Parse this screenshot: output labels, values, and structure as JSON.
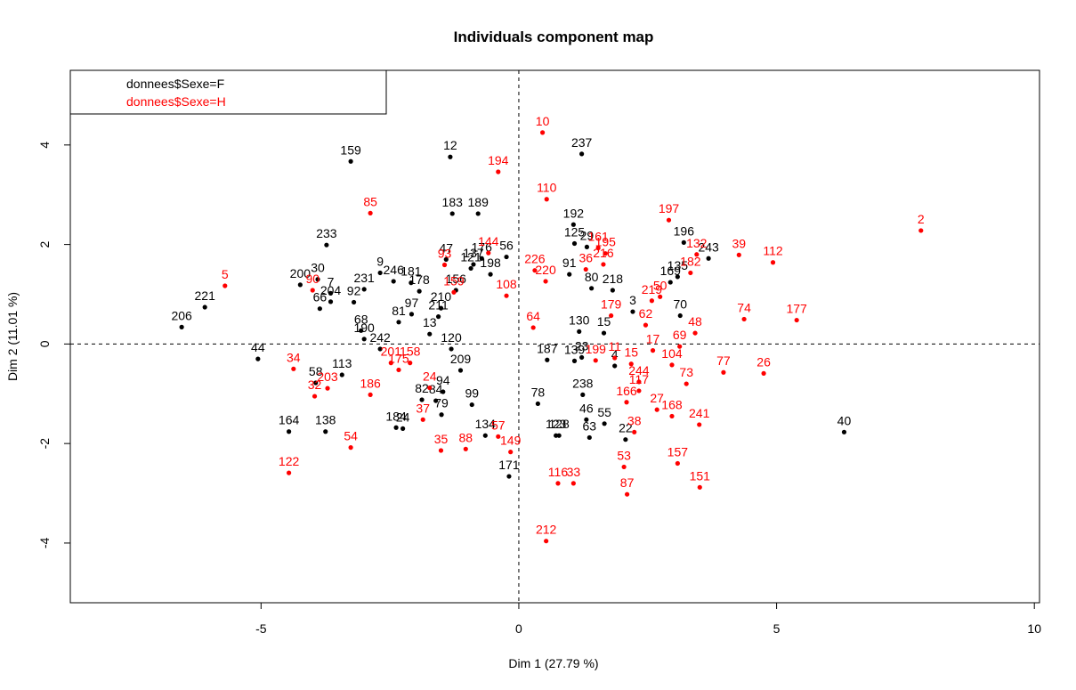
{
  "chart_data": {
    "type": "scatter",
    "title": "Individuals component map",
    "xlabel": "Dim 1 (27.79 %)",
    "ylabel": "Dim 2 (11.01 %)",
    "xlim": [
      -8.7,
      10.1
    ],
    "ylim": [
      -5.2,
      5.5
    ],
    "xticks": [
      -5,
      0,
      5,
      10
    ],
    "yticks": [
      -4,
      -2,
      0,
      2,
      4
    ],
    "xtick_labels": [
      "-5",
      "0",
      "5",
      "10"
    ],
    "ytick_labels": [
      "-4",
      "-2",
      "0",
      "2",
      "4"
    ],
    "reference_lines": {
      "x": 0,
      "y": 0,
      "style": "dashed"
    },
    "legend": {
      "placement": "top-left",
      "entries": [
        {
          "label": "donnees$Sexe=F",
          "color": "#000000"
        },
        {
          "label": "donnees$Sexe=H",
          "color": "#ff0000"
        }
      ]
    },
    "series": [
      {
        "name": "donnees$Sexe=F",
        "color": "#000000",
        "points": [
          {
            "label": "159",
            "x": -3.26,
            "y": 3.67
          },
          {
            "label": "12",
            "x": -1.33,
            "y": 3.76
          },
          {
            "label": "237",
            "x": 1.22,
            "y": 3.82
          },
          {
            "label": "189",
            "x": -0.79,
            "y": 2.62
          },
          {
            "label": "183",
            "x": -1.29,
            "y": 2.62
          },
          {
            "label": "192",
            "x": 1.06,
            "y": 2.4
          },
          {
            "label": "233",
            "x": -3.73,
            "y": 1.99
          },
          {
            "label": "196",
            "x": 3.2,
            "y": 2.04
          },
          {
            "label": "243",
            "x": 3.68,
            "y": 1.72
          },
          {
            "label": "47",
            "x": -1.41,
            "y": 1.7
          },
          {
            "label": "176",
            "x": -0.72,
            "y": 1.72
          },
          {
            "label": "56",
            "x": -0.24,
            "y": 1.75
          },
          {
            "label": "137",
            "x": -0.88,
            "y": 1.6
          },
          {
            "label": "121",
            "x": -0.93,
            "y": 1.52
          },
          {
            "label": "198",
            "x": -0.55,
            "y": 1.4
          },
          {
            "label": "9",
            "x": -2.69,
            "y": 1.43
          },
          {
            "label": "30",
            "x": -3.9,
            "y": 1.3
          },
          {
            "label": "246",
            "x": -2.43,
            "y": 1.26
          },
          {
            "label": "181",
            "x": -2.09,
            "y": 1.23
          },
          {
            "label": "178",
            "x": -1.93,
            "y": 1.06
          },
          {
            "label": "200",
            "x": -4.24,
            "y": 1.19
          },
          {
            "label": "7",
            "x": -3.65,
            "y": 1.02
          },
          {
            "label": "231",
            "x": -3.0,
            "y": 1.1
          },
          {
            "label": "204",
            "x": -3.65,
            "y": 0.85
          },
          {
            "label": "92",
            "x": -3.2,
            "y": 0.84
          },
          {
            "label": "66",
            "x": -3.86,
            "y": 0.71
          },
          {
            "label": "221",
            "x": -6.09,
            "y": 0.74
          },
          {
            "label": "206",
            "x": -6.54,
            "y": 0.34
          },
          {
            "label": "156",
            "x": -1.22,
            "y": 1.08
          },
          {
            "label": "210",
            "x": -1.51,
            "y": 0.72
          },
          {
            "label": "211",
            "x": -1.56,
            "y": 0.55
          },
          {
            "label": "97",
            "x": -2.08,
            "y": 0.6
          },
          {
            "label": "81",
            "x": -2.33,
            "y": 0.44
          },
          {
            "label": "68",
            "x": -3.06,
            "y": 0.27
          },
          {
            "label": "190",
            "x": -3.0,
            "y": 0.1
          },
          {
            "label": "44",
            "x": -5.06,
            "y": -0.3
          },
          {
            "label": "242",
            "x": -2.69,
            "y": -0.1
          },
          {
            "label": "13",
            "x": -1.73,
            "y": 0.2
          },
          {
            "label": "120",
            "x": -1.31,
            "y": -0.1
          },
          {
            "label": "113",
            "x": -3.43,
            "y": -0.62
          },
          {
            "label": "58",
            "x": -3.94,
            "y": -0.78
          },
          {
            "label": "82",
            "x": -1.88,
            "y": -1.12
          },
          {
            "label": "84",
            "x": -1.61,
            "y": -1.14
          },
          {
            "label": "79",
            "x": -1.5,
            "y": -1.42
          },
          {
            "label": "94",
            "x": -1.47,
            "y": -0.96
          },
          {
            "label": "209",
            "x": -1.13,
            "y": -0.53
          },
          {
            "label": "99",
            "x": -0.91,
            "y": -1.22
          },
          {
            "label": "164",
            "x": -4.46,
            "y": -1.76
          },
          {
            "label": "138",
            "x": -3.75,
            "y": -1.76
          },
          {
            "label": "184",
            "x": -2.38,
            "y": -1.68
          },
          {
            "label": "24",
            "x": -2.25,
            "y": -1.7
          },
          {
            "label": "134",
            "x": -0.65,
            "y": -1.84
          },
          {
            "label": "171",
            "x": -0.19,
            "y": -2.66
          },
          {
            "label": "123",
            "x": 0.72,
            "y": -1.84
          },
          {
            "label": "128",
            "x": 0.78,
            "y": -1.84
          },
          {
            "label": "63",
            "x": 1.37,
            "y": -1.88
          },
          {
            "label": "46",
            "x": 1.31,
            "y": -1.52
          },
          {
            "label": "55",
            "x": 1.66,
            "y": -1.6
          },
          {
            "label": "22",
            "x": 2.07,
            "y": -1.92
          },
          {
            "label": "40",
            "x": 6.31,
            "y": -1.77
          },
          {
            "label": "70",
            "x": 3.13,
            "y": 0.57
          },
          {
            "label": "3",
            "x": 2.21,
            "y": 0.65
          },
          {
            "label": "169",
            "x": 2.94,
            "y": 1.24
          },
          {
            "label": "135",
            "x": 3.08,
            "y": 1.35
          },
          {
            "label": "15",
            "x": 1.65,
            "y": 0.22
          },
          {
            "label": "4",
            "x": 1.86,
            "y": -0.44
          },
          {
            "label": "23",
            "x": 1.22,
            "y": -0.27
          },
          {
            "label": "187",
            "x": 0.55,
            "y": -0.32
          },
          {
            "label": "125",
            "x": 1.08,
            "y": 2.02
          },
          {
            "label": "29",
            "x": 1.32,
            "y": 1.95
          },
          {
            "label": "80",
            "x": 1.41,
            "y": 1.12
          },
          {
            "label": "218",
            "x": 1.82,
            "y": 1.08
          },
          {
            "label": "91",
            "x": 0.98,
            "y": 1.4
          },
          {
            "label": "130",
            "x": 1.17,
            "y": 0.25
          },
          {
            "label": "139",
            "x": 1.08,
            "y": -0.34
          },
          {
            "label": "78",
            "x": 0.37,
            "y": -1.2
          },
          {
            "label": "238",
            "x": 1.24,
            "y": -1.02
          }
        ]
      },
      {
        "name": "donnees$Sexe=H",
        "color": "#ff0000",
        "points": [
          {
            "label": "10",
            "x": 0.46,
            "y": 4.25
          },
          {
            "label": "194",
            "x": -0.4,
            "y": 3.46
          },
          {
            "label": "85",
            "x": -2.88,
            "y": 2.63
          },
          {
            "label": "110",
            "x": 0.54,
            "y": 2.91
          },
          {
            "label": "197",
            "x": 2.91,
            "y": 2.49
          },
          {
            "label": "2",
            "x": 7.8,
            "y": 2.28
          },
          {
            "label": "39",
            "x": 4.27,
            "y": 1.79
          },
          {
            "label": "112",
            "x": 4.93,
            "y": 1.64
          },
          {
            "label": "132",
            "x": 3.45,
            "y": 1.8
          },
          {
            "label": "182",
            "x": 3.33,
            "y": 1.43
          },
          {
            "label": "5",
            "x": -5.7,
            "y": 1.17
          },
          {
            "label": "90",
            "x": -4.0,
            "y": 1.08
          },
          {
            "label": "93",
            "x": -1.44,
            "y": 1.59
          },
          {
            "label": "144",
            "x": -0.59,
            "y": 1.83
          },
          {
            "label": "161",
            "x": 1.54,
            "y": 1.93
          },
          {
            "label": "195",
            "x": 1.68,
            "y": 1.82
          },
          {
            "label": "216",
            "x": 1.64,
            "y": 1.6
          },
          {
            "label": "36",
            "x": 1.3,
            "y": 1.5
          },
          {
            "label": "226",
            "x": 0.31,
            "y": 1.48
          },
          {
            "label": "220",
            "x": 0.52,
            "y": 1.26
          },
          {
            "label": "108",
            "x": -0.24,
            "y": 0.97
          },
          {
            "label": "159",
            "x": -1.26,
            "y": 1.04
          },
          {
            "label": "219",
            "x": 2.58,
            "y": 0.87
          },
          {
            "label": "50",
            "x": 2.74,
            "y": 0.95
          },
          {
            "label": "74",
            "x": 4.37,
            "y": 0.5
          },
          {
            "label": "177",
            "x": 5.39,
            "y": 0.48
          },
          {
            "label": "48",
            "x": 3.42,
            "y": 0.22
          },
          {
            "label": "69",
            "x": 3.12,
            "y": -0.05
          },
          {
            "label": "62",
            "x": 2.46,
            "y": 0.38
          },
          {
            "label": "17",
            "x": 2.6,
            "y": -0.13
          },
          {
            "label": "104",
            "x": 2.97,
            "y": -0.42
          },
          {
            "label": "77",
            "x": 3.97,
            "y": -0.57
          },
          {
            "label": "26",
            "x": 4.75,
            "y": -0.59
          },
          {
            "label": "73",
            "x": 3.25,
            "y": -0.8
          },
          {
            "label": "11",
            "x": 1.86,
            "y": -0.28
          },
          {
            "label": "199",
            "x": 1.49,
            "y": -0.33
          },
          {
            "label": "244",
            "x": 2.33,
            "y": -0.76
          },
          {
            "label": "117",
            "x": 2.33,
            "y": -0.94
          },
          {
            "label": "166",
            "x": 2.09,
            "y": -1.17
          },
          {
            "label": "27",
            "x": 2.68,
            "y": -1.32
          },
          {
            "label": "168",
            "x": 2.97,
            "y": -1.45
          },
          {
            "label": "241",
            "x": 3.5,
            "y": -1.62
          },
          {
            "label": "38",
            "x": 2.24,
            "y": -1.77
          },
          {
            "label": "53",
            "x": 2.04,
            "y": -2.47
          },
          {
            "label": "157",
            "x": 3.08,
            "y": -2.4
          },
          {
            "label": "151",
            "x": 3.51,
            "y": -2.88
          },
          {
            "label": "87",
            "x": 2.1,
            "y": -3.02
          },
          {
            "label": "116",
            "x": 0.76,
            "y": -2.8
          },
          {
            "label": "33",
            "x": 1.06,
            "y": -2.8
          },
          {
            "label": "212",
            "x": 0.53,
            "y": -3.96
          },
          {
            "label": "34",
            "x": -4.37,
            "y": -0.5
          },
          {
            "label": "32",
            "x": -3.96,
            "y": -1.05
          },
          {
            "label": "203",
            "x": -3.71,
            "y": -0.89
          },
          {
            "label": "186",
            "x": -2.88,
            "y": -1.02
          },
          {
            "label": "54",
            "x": -3.26,
            "y": -2.08
          },
          {
            "label": "122",
            "x": -4.46,
            "y": -2.59
          },
          {
            "label": "35",
            "x": -1.51,
            "y": -2.14
          },
          {
            "label": "88",
            "x": -1.03,
            "y": -2.11
          },
          {
            "label": "37",
            "x": -1.86,
            "y": -1.52
          },
          {
            "label": "149",
            "x": -0.16,
            "y": -2.17
          },
          {
            "label": "57",
            "x": -0.4,
            "y": -1.86
          },
          {
            "label": "175",
            "x": -2.33,
            "y": -0.52
          },
          {
            "label": "158",
            "x": -2.11,
            "y": -0.38
          },
          {
            "label": "201",
            "x": -2.48,
            "y": -0.38
          },
          {
            "label": "24",
            "x": -1.73,
            "y": -0.88
          },
          {
            "label": "179",
            "x": 1.79,
            "y": 0.57
          },
          {
            "label": "64",
            "x": 0.28,
            "y": 0.33
          },
          {
            "label": "15",
            "x": 2.18,
            "y": -0.4
          }
        ]
      }
    ]
  }
}
